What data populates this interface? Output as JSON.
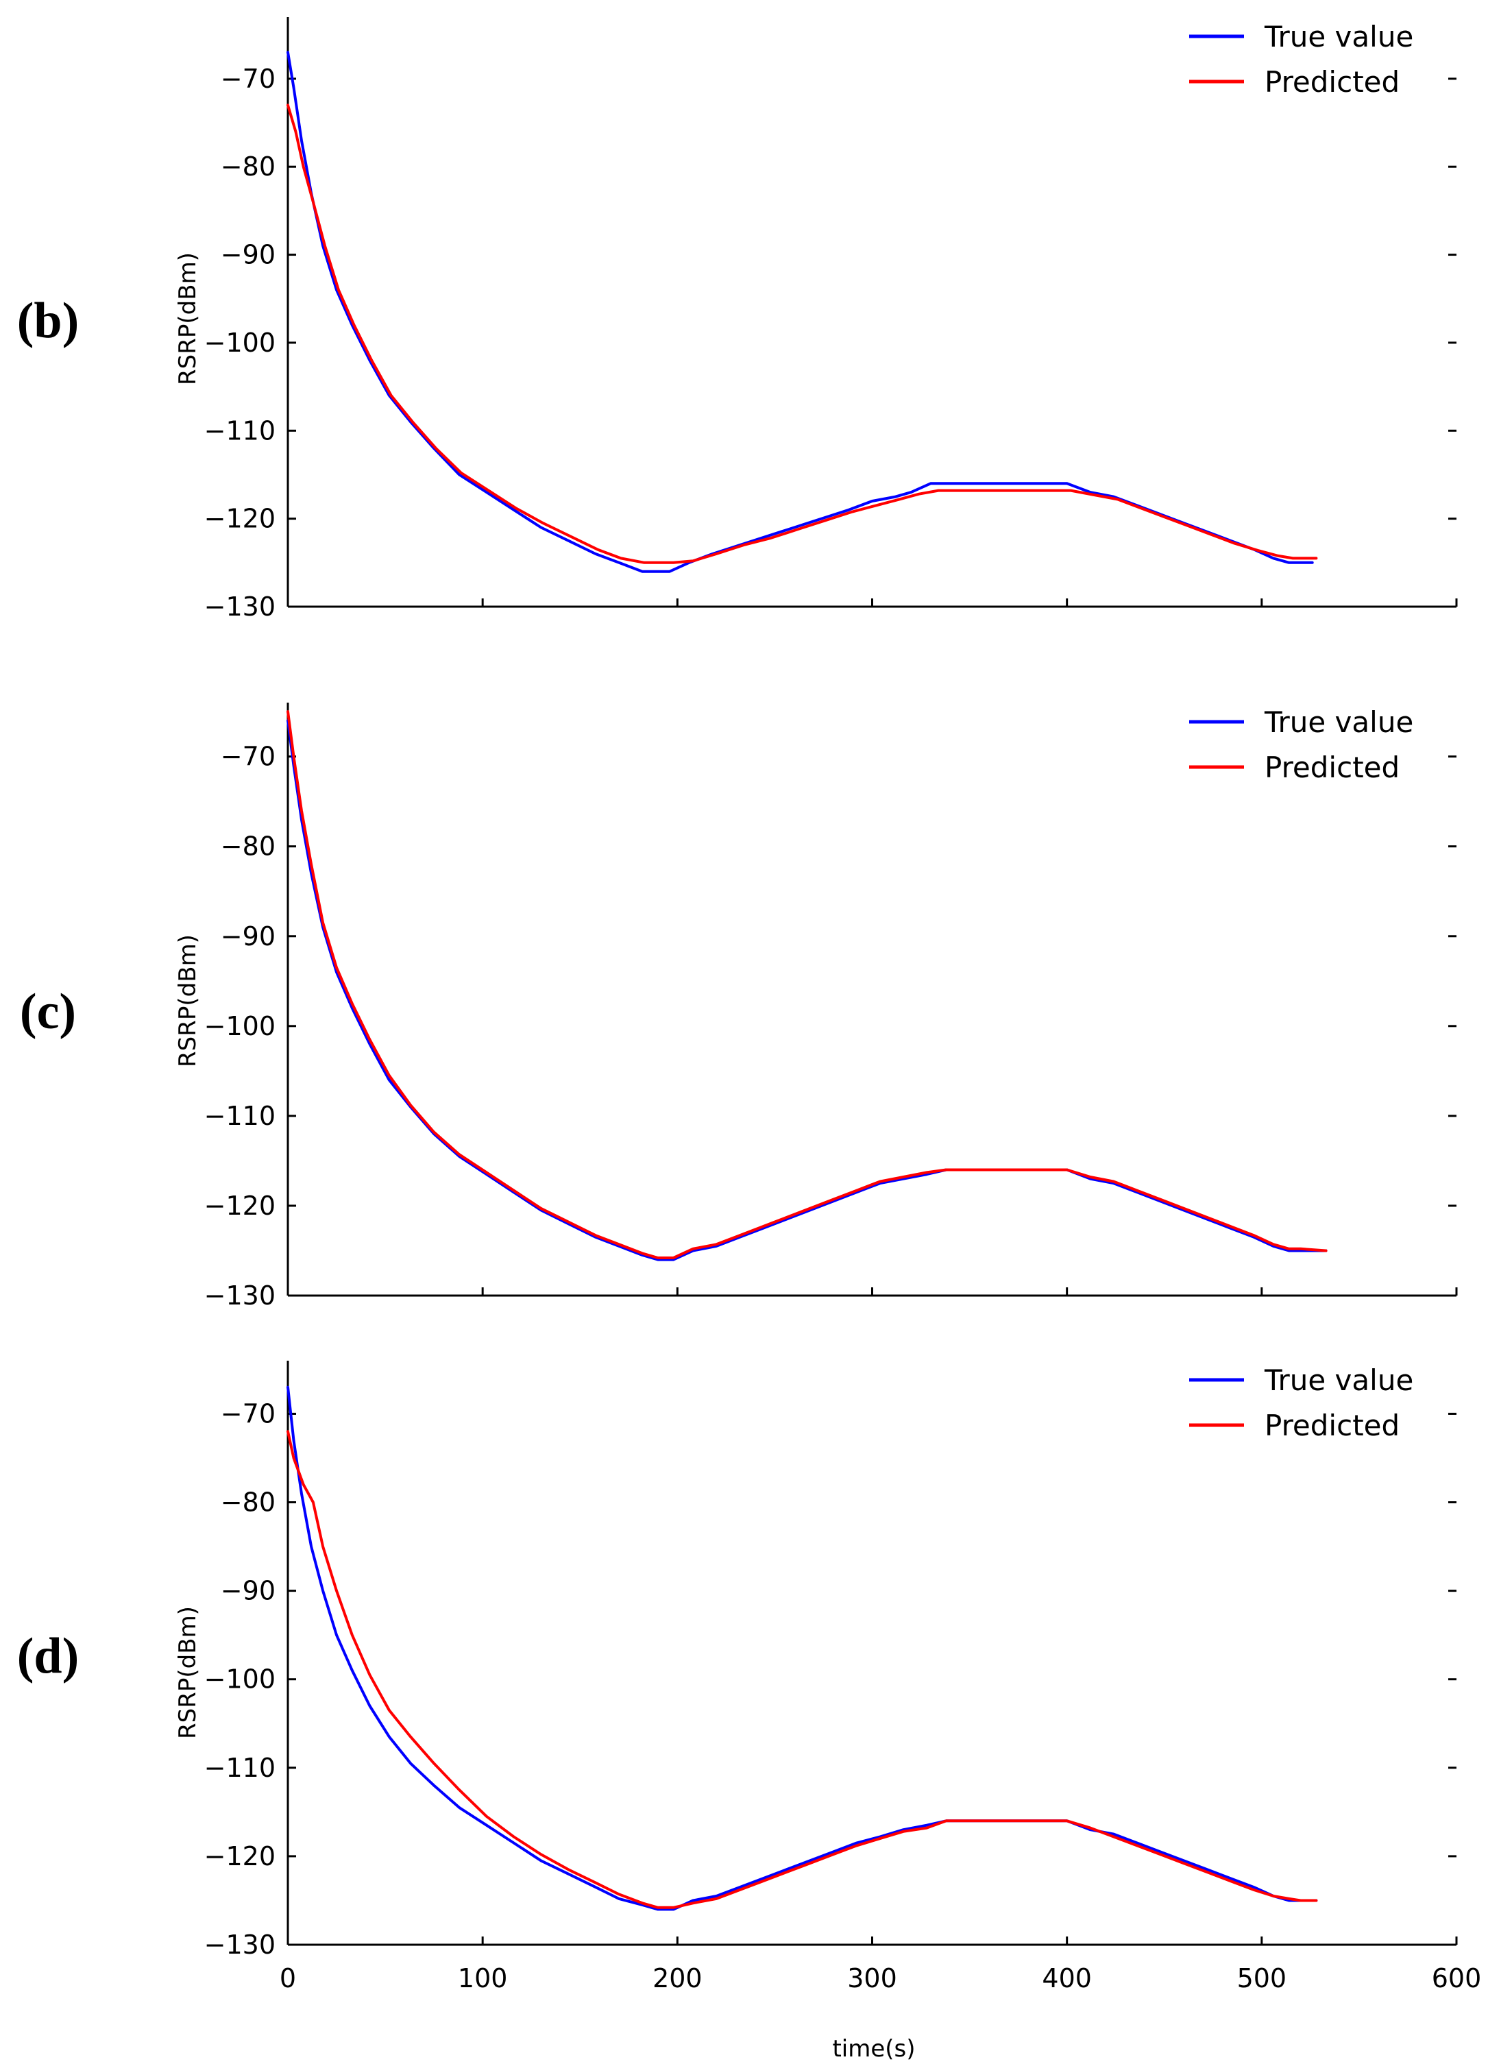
{
  "chart_data": [
    {
      "panel_label": "(b)",
      "type": "line",
      "ylabel": "RSRP(dBm)",
      "xlabel": "",
      "xlim": [
        0,
        600
      ],
      "ylim": [
        -130,
        -63
      ],
      "yticks": [
        -70,
        -80,
        -90,
        -100,
        -110,
        -120,
        -130
      ],
      "xticks": [],
      "legend": {
        "position": "top-right",
        "entries": [
          "True value",
          "Predicted"
        ]
      },
      "series": [
        {
          "name": "True value",
          "color": "#0000ff",
          "x": [
            0,
            3,
            7,
            12,
            18,
            25,
            33,
            42,
            52,
            63,
            75,
            88,
            102,
            116,
            130,
            144,
            158,
            170,
            182,
            188,
            196,
            206,
            218,
            232,
            246,
            260,
            274,
            288,
            300,
            312,
            320,
            330,
            340,
            360,
            380,
            400,
            412,
            424,
            436,
            448,
            460,
            472,
            484,
            496,
            506,
            514,
            520,
            526
          ],
          "y": [
            -67,
            -71,
            -77,
            -83,
            -89,
            -94,
            -98,
            -102,
            -106,
            -109,
            -112,
            -115,
            -117,
            -119,
            -121,
            -122.5,
            -124,
            -125,
            -126,
            -126,
            -126,
            -125,
            -124,
            -123,
            -122,
            -121,
            -120,
            -119,
            -118,
            -117.5,
            -117,
            -116,
            -116,
            -116,
            -116,
            -116,
            -117,
            -117.5,
            -118.5,
            -119.5,
            -120.5,
            -121.5,
            -122.5,
            -123.5,
            -124.5,
            -125,
            -125,
            -125
          ]
        },
        {
          "name": "Predicted",
          "color": "#ff0000",
          "x": [
            0,
            4,
            8,
            13,
            19,
            26,
            34,
            43,
            53,
            64,
            76,
            89,
            103,
            117,
            131,
            145,
            159,
            171,
            183,
            190,
            198,
            208,
            220,
            234,
            248,
            262,
            276,
            290,
            302,
            314,
            324,
            334,
            344,
            362,
            382,
            402,
            414,
            426,
            438,
            450,
            462,
            474,
            486,
            498,
            508,
            516,
            522,
            528
          ],
          "y": [
            -73,
            -76,
            -80,
            -84,
            -89,
            -94,
            -98,
            -102,
            -106,
            -109,
            -112,
            -114.8,
            -116.8,
            -118.8,
            -120.5,
            -122,
            -123.5,
            -124.5,
            -125,
            -125,
            -125,
            -124.8,
            -124,
            -123,
            -122.2,
            -121.2,
            -120.2,
            -119.2,
            -118.5,
            -117.8,
            -117.2,
            -116.8,
            -116.8,
            -116.8,
            -116.8,
            -116.8,
            -117.3,
            -117.8,
            -118.8,
            -119.8,
            -120.8,
            -121.8,
            -122.8,
            -123.6,
            -124.2,
            -124.5,
            -124.5,
            -124.5
          ]
        }
      ]
    },
    {
      "panel_label": "(c)",
      "type": "line",
      "ylabel": "RSRP(dBm)",
      "xlabel": "",
      "xlim": [
        0,
        600
      ],
      "ylim": [
        -130,
        -64
      ],
      "yticks": [
        -70,
        -80,
        -90,
        -100,
        -110,
        -120,
        -130
      ],
      "xticks": [],
      "legend": {
        "position": "top-right",
        "entries": [
          "True value",
          "Predicted"
        ]
      },
      "series": [
        {
          "name": "True value",
          "color": "#0000ff",
          "x": [
            0,
            3,
            7,
            12,
            18,
            25,
            33,
            42,
            52,
            63,
            75,
            88,
            102,
            116,
            130,
            144,
            158,
            170,
            182,
            190,
            198,
            208,
            220,
            232,
            244,
            256,
            268,
            280,
            292,
            304,
            316,
            328,
            338,
            360,
            380,
            400,
            412,
            424,
            436,
            448,
            460,
            472,
            484,
            496,
            506,
            514,
            520,
            533
          ],
          "y": [
            -66,
            -71,
            -77,
            -83,
            -89,
            -94,
            -98,
            -102,
            -106,
            -109,
            -112,
            -114.5,
            -116.5,
            -118.5,
            -120.5,
            -122,
            -123.5,
            -124.5,
            -125.5,
            -126,
            -126,
            -125,
            -124.5,
            -123.5,
            -122.5,
            -121.5,
            -120.5,
            -119.5,
            -118.5,
            -117.5,
            -117,
            -116.5,
            -116,
            -116,
            -116,
            -116,
            -117,
            -117.5,
            -118.5,
            -119.5,
            -120.5,
            -121.5,
            -122.5,
            -123.5,
            -124.5,
            -125,
            -125,
            -125
          ]
        },
        {
          "name": "Predicted",
          "color": "#ff0000",
          "x": [
            0,
            3,
            7,
            12,
            18,
            25,
            33,
            42,
            52,
            63,
            75,
            88,
            102,
            116,
            130,
            144,
            158,
            170,
            182,
            190,
            198,
            208,
            220,
            232,
            244,
            256,
            268,
            280,
            292,
            304,
            316,
            328,
            338,
            360,
            380,
            400,
            412,
            424,
            436,
            448,
            460,
            472,
            484,
            496,
            506,
            514,
            520,
            533
          ],
          "y": [
            -65,
            -70,
            -76,
            -82,
            -88.5,
            -93.5,
            -97.5,
            -101.5,
            -105.5,
            -108.8,
            -111.8,
            -114.3,
            -116.3,
            -118.3,
            -120.3,
            -121.8,
            -123.3,
            -124.3,
            -125.3,
            -125.8,
            -125.8,
            -124.8,
            -124.3,
            -123.3,
            -122.3,
            -121.3,
            -120.3,
            -119.3,
            -118.3,
            -117.3,
            -116.8,
            -116.3,
            -116,
            -116,
            -116,
            -116,
            -116.8,
            -117.3,
            -118.3,
            -119.3,
            -120.3,
            -121.3,
            -122.3,
            -123.3,
            -124.3,
            -124.8,
            -124.8,
            -125
          ]
        }
      ]
    },
    {
      "panel_label": "(d)",
      "type": "line",
      "ylabel": "RSRP(dBm)",
      "xlabel": "time(s)",
      "xlim": [
        0,
        600
      ],
      "ylim": [
        -130,
        -64
      ],
      "yticks": [
        -70,
        -80,
        -90,
        -100,
        -110,
        -120,
        -130
      ],
      "xticks": [
        0,
        100,
        200,
        300,
        400,
        500,
        600
      ],
      "legend": {
        "position": "top-right",
        "entries": [
          "True value",
          "Predicted"
        ]
      },
      "series": [
        {
          "name": "True value",
          "color": "#0000ff",
          "x": [
            0,
            3,
            7,
            12,
            18,
            25,
            33,
            42,
            52,
            63,
            75,
            88,
            102,
            116,
            130,
            144,
            158,
            170,
            182,
            190,
            198,
            208,
            220,
            232,
            244,
            256,
            268,
            280,
            292,
            304,
            316,
            328,
            338,
            360,
            380,
            400,
            412,
            424,
            436,
            448,
            460,
            472,
            484,
            496,
            506,
            514,
            520,
            528
          ],
          "y": [
            -67,
            -73,
            -79,
            -85,
            -90,
            -95,
            -99,
            -103,
            -106.5,
            -109.5,
            -112,
            -114.5,
            -116.5,
            -118.5,
            -120.5,
            -122,
            -123.5,
            -124.8,
            -125.5,
            -126,
            -126,
            -125,
            -124.5,
            -123.5,
            -122.5,
            -121.5,
            -120.5,
            -119.5,
            -118.5,
            -117.8,
            -117,
            -116.5,
            -116,
            -116,
            -116,
            -116,
            -117,
            -117.5,
            -118.5,
            -119.5,
            -120.5,
            -121.5,
            -122.5,
            -123.5,
            -124.5,
            -125,
            -125,
            -125
          ]
        },
        {
          "name": "Predicted",
          "color": "#ff0000",
          "x": [
            0,
            3,
            8,
            13,
            18,
            25,
            33,
            42,
            52,
            63,
            75,
            88,
            102,
            116,
            130,
            144,
            158,
            170,
            182,
            190,
            198,
            208,
            220,
            232,
            244,
            256,
            268,
            280,
            292,
            304,
            316,
            328,
            338,
            360,
            380,
            400,
            412,
            424,
            436,
            448,
            460,
            472,
            484,
            496,
            506,
            514,
            520,
            528
          ],
          "y": [
            -72,
            -75,
            -78,
            -80,
            -85,
            -90,
            -95,
            -99.5,
            -103.5,
            -106.5,
            -109.5,
            -112.5,
            -115.5,
            -117.8,
            -119.8,
            -121.5,
            -123,
            -124.3,
            -125.3,
            -125.8,
            -125.8,
            -125.3,
            -124.8,
            -123.8,
            -122.8,
            -121.8,
            -120.8,
            -119.8,
            -118.8,
            -118,
            -117.2,
            -116.8,
            -116,
            -116,
            -116,
            -116,
            -116.8,
            -117.8,
            -118.8,
            -119.8,
            -120.8,
            -121.8,
            -122.8,
            -123.8,
            -124.5,
            -124.8,
            -125,
            -125
          ]
        }
      ]
    }
  ]
}
